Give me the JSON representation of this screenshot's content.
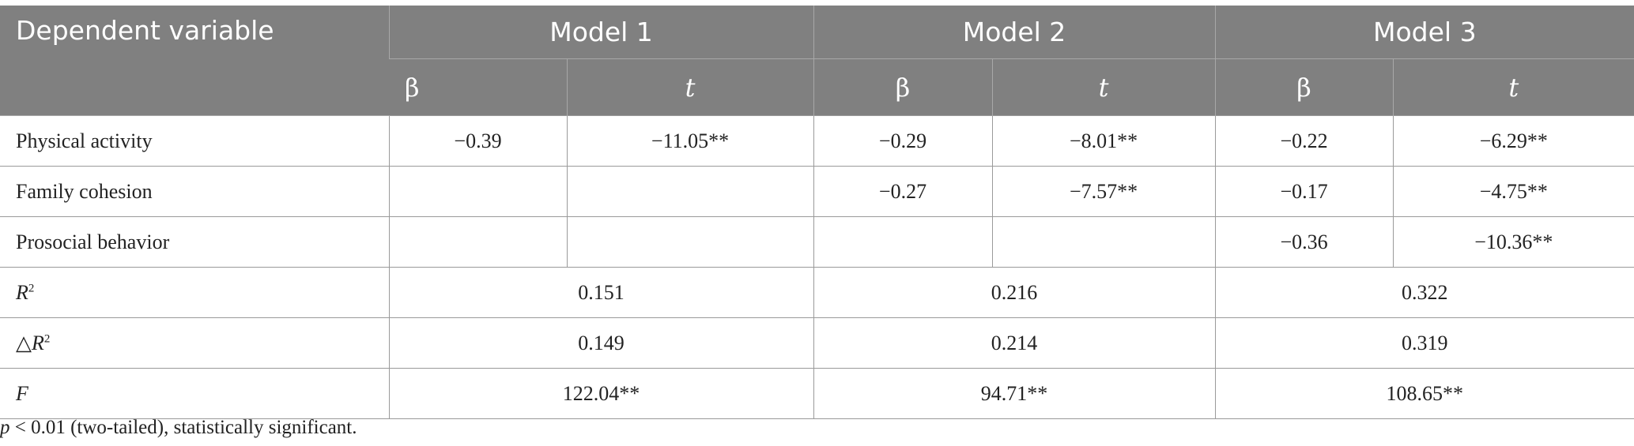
{
  "header": {
    "title": "Dependent variable",
    "models": [
      "Model 1",
      "Model 2",
      "Model 3"
    ],
    "subheaders": [
      "β",
      "t"
    ]
  },
  "table": {
    "rows": [
      {
        "label": "Physical activity",
        "cells": [
          "−0.39",
          "−11.05**",
          "−0.29",
          "−8.01**",
          "−0.22",
          "−6.29**"
        ]
      },
      {
        "label": "Family cohesion",
        "cells": [
          null,
          null,
          "−0.27",
          "−7.57**",
          "−0.17",
          "−4.75**"
        ]
      },
      {
        "label": "Prosocial behavior",
        "cells": [
          null,
          null,
          null,
          null,
          "−0.36",
          "−10.36**"
        ]
      }
    ],
    "summary": [
      {
        "label": {
          "base": "R",
          "sup": "2"
        },
        "cells": [
          "0.151",
          "0.216",
          "0.322"
        ]
      },
      {
        "label": {
          "prefix": "△",
          "base": "R",
          "sup": "2"
        },
        "cells": [
          "0.149",
          "0.214",
          "0.319"
        ]
      },
      {
        "label": {
          "base": "F"
        },
        "cells": [
          "122.04**",
          "94.71**",
          "108.65**"
        ]
      }
    ]
  },
  "footnote": {
    "symbol": "p",
    "text": " < 0.01 (two-tailed), statistically significant."
  }
}
